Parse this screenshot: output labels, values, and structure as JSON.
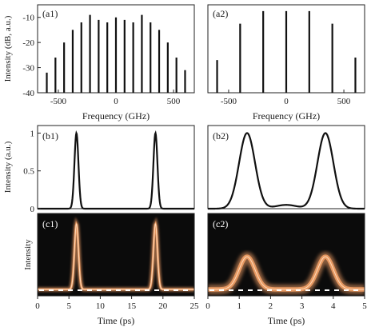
{
  "colors": {
    "line": "#111111",
    "frame": "#222222",
    "dark_bg": "#0b0b0b",
    "glow": "#f2a066",
    "glow_core": "#ffd9b8",
    "dash": "#ffffff"
  },
  "chart_data": [
    {
      "id": "a1",
      "type": "bar",
      "label": "(a1)",
      "xlabel": "Frequency (GHz)",
      "ylabel": "Intensity (dB, a.u.)",
      "xlim": [
        -680,
        680
      ],
      "ylim": [
        -40,
        -5
      ],
      "xticks": [
        -500,
        0,
        500
      ],
      "xtick_labels": [
        "-500",
        "0",
        "500"
      ],
      "yticks": [
        -10,
        -20,
        -30,
        -40
      ],
      "ytick_labels": [
        "-10",
        "-20",
        "-30",
        "-40"
      ],
      "x": [
        -600,
        -525,
        -450,
        -375,
        -300,
        -225,
        -150,
        -75,
        0,
        75,
        150,
        225,
        300,
        375,
        450,
        525,
        600
      ],
      "values": [
        -32,
        -26,
        -20,
        -15,
        -12,
        -9,
        -11,
        -12,
        -10,
        -11,
        -12,
        -9,
        -12,
        -15,
        -20,
        -26,
        -31
      ]
    },
    {
      "id": "a2",
      "type": "bar",
      "label": "(a2)",
      "xlabel": "Frequency (GHz)",
      "xlim": [
        -680,
        680
      ],
      "ylim": [
        -40,
        -5
      ],
      "xticks": [
        -500,
        0,
        500
      ],
      "xtick_labels": [
        "-500",
        "0",
        "500"
      ],
      "x": [
        -600,
        -400,
        -200,
        0,
        200,
        400,
        600
      ],
      "values": [
        -27,
        -12.5,
        -7.5,
        -7.5,
        -7.5,
        -12.5,
        -26
      ]
    },
    {
      "id": "b1",
      "type": "line",
      "label": "(b1)",
      "ylabel": "Intensity (a.u.)",
      "xlim": [
        0,
        25
      ],
      "ylim": [
        0,
        1.1
      ],
      "yticks": [
        0,
        0.5,
        1
      ],
      "ytick_labels": [
        "0",
        "0.5",
        "1"
      ],
      "series": [
        {
          "pulse_centers_ps": [
            6.2,
            18.8
          ],
          "pulse_fwhm_ps": 0.75,
          "peak": 1.0
        }
      ]
    },
    {
      "id": "b2",
      "type": "line",
      "label": "(b2)",
      "xlim": [
        0,
        5
      ],
      "ylim": [
        0,
        1.1
      ],
      "series": [
        {
          "pulse_centers_ps": [
            1.25,
            3.75
          ],
          "pulse_fwhm_ps": 0.6,
          "peak": 1.0,
          "baseline_bump_at_ps": 2.5,
          "baseline_bump": 0.05
        }
      ]
    },
    {
      "id": "c1",
      "type": "heatmap",
      "label": "(c1)",
      "xlabel": "Time (ps)",
      "ylabel": "Intensity",
      "xlim": [
        0,
        25
      ],
      "xticks": [
        0,
        5,
        10,
        15,
        20,
        25
      ],
      "xtick_labels": [
        "0",
        "5",
        "10",
        "15",
        "20",
        "25"
      ],
      "series": [
        {
          "pulse_centers_ps": [
            6.2,
            18.8
          ],
          "pulse_fwhm_ps": 0.75,
          "peak": 0.9
        }
      ]
    },
    {
      "id": "c2",
      "type": "heatmap",
      "label": "(c2)",
      "xlabel": "Time (ps)",
      "xlim": [
        0,
        5
      ],
      "xticks": [
        0,
        1,
        2,
        3,
        4,
        5
      ],
      "xtick_labels": [
        "0",
        "1",
        "2",
        "3",
        "4",
        "5"
      ],
      "series": [
        {
          "pulse_centers_ps": [
            1.25,
            3.75
          ],
          "pulse_fwhm_ps": 0.6,
          "peak": 0.45
        }
      ]
    }
  ]
}
